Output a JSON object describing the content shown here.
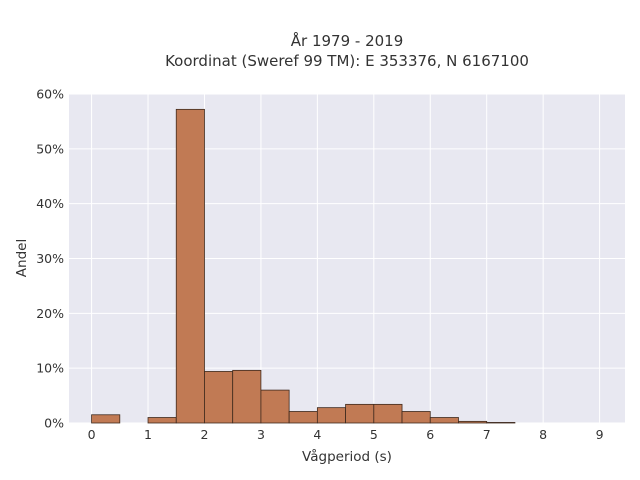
{
  "chart_data": {
    "type": "bar",
    "title_lines": [
      "År 1979 - 2019",
      "Koordinat (Sweref 99 TM): E 353376, N 6167100"
    ],
    "xlabel": "Vågperiod (s)",
    "ylabel": "Andel",
    "xlim": [
      -0.4,
      9.45
    ],
    "ylim": [
      0,
      0.6
    ],
    "x_ticks": [
      0,
      1,
      2,
      3,
      4,
      5,
      6,
      7,
      8,
      9
    ],
    "x_tick_labels": [
      "0",
      "1",
      "2",
      "3",
      "4",
      "5",
      "6",
      "7",
      "8",
      "9"
    ],
    "y_ticks": [
      0,
      0.1,
      0.2,
      0.3,
      0.4,
      0.5,
      0.6
    ],
    "y_tick_labels": [
      "0%",
      "10%",
      "20%",
      "30%",
      "40%",
      "50%",
      "60%"
    ],
    "bin_width": 0.5,
    "bins": [
      {
        "start": 0.0,
        "value": 0.015
      },
      {
        "start": 0.5,
        "value": 0.0
      },
      {
        "start": 1.0,
        "value": 0.01
      },
      {
        "start": 1.5,
        "value": 0.572
      },
      {
        "start": 2.0,
        "value": 0.094
      },
      {
        "start": 2.5,
        "value": 0.096
      },
      {
        "start": 3.0,
        "value": 0.06
      },
      {
        "start": 3.5,
        "value": 0.021
      },
      {
        "start": 4.0,
        "value": 0.028
      },
      {
        "start": 4.5,
        "value": 0.034
      },
      {
        "start": 5.0,
        "value": 0.034
      },
      {
        "start": 5.5,
        "value": 0.021
      },
      {
        "start": 6.0,
        "value": 0.01
      },
      {
        "start": 6.5,
        "value": 0.003
      },
      {
        "start": 7.0,
        "value": 0.001
      }
    ],
    "grid": true,
    "colors": {
      "bar_fill": "#c17a54",
      "bar_edge": "#3f2a1e",
      "plot_bg": "#e8e8f1",
      "grid": "#ffffff"
    }
  }
}
